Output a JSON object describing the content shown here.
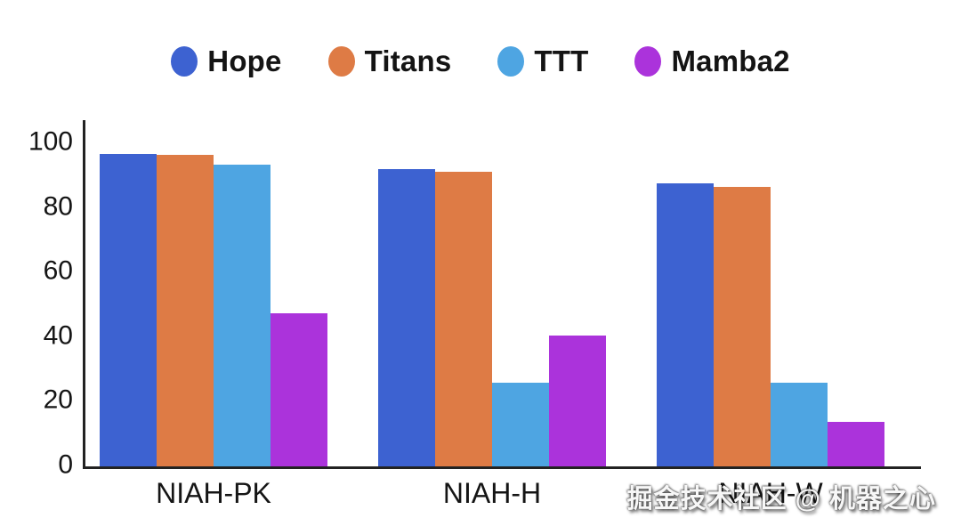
{
  "chart_data": {
    "type": "bar",
    "title": "",
    "categories": [
      "NIAH-PK",
      "NIAH-H",
      "NIAH-W"
    ],
    "series": [
      {
        "name": "Hope",
        "color": "#3D62D1",
        "values": [
          96.7,
          92.0,
          87.7
        ]
      },
      {
        "name": "Titans",
        "color": "#DE7B45",
        "values": [
          96.3,
          91.2,
          86.5
        ]
      },
      {
        "name": "TTT",
        "color": "#4EA5E2",
        "values": [
          93.5,
          26.0,
          25.9
        ]
      },
      {
        "name": "Mamba2",
        "color": "#AB33DB",
        "values": [
          47.4,
          40.4,
          13.7
        ]
      }
    ],
    "ylim": [
      0,
      100
    ],
    "yticks": [
      0,
      20,
      40,
      60,
      80,
      100
    ],
    "xlabel": "",
    "ylabel": "",
    "grid": false,
    "legend_position": "top",
    "bar_gap_within_group": 0
  },
  "watermark": {
    "text": "掘金技术社区 @ 机器之心"
  },
  "colors": {
    "background": "#ffffff",
    "axis": "#222222",
    "tick_text": "#151515",
    "legend_text": "#141414",
    "watermark_text": "#f7f7f7"
  }
}
